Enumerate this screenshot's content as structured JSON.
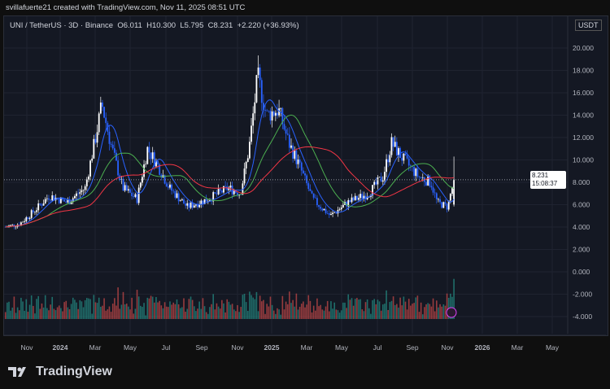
{
  "credit": "svillafuerte21 created with TradingView.com, Nov 11, 2025 08:51 UTC",
  "legend": {
    "symbol": "UNI / TetherUS · 3D · Binance",
    "open": "O6.011",
    "high": "H10.300",
    "low": "L5.795",
    "close": "C8.231",
    "change": "+2.220 (+36.93%)"
  },
  "currency": "USDT",
  "last_price": {
    "price": "8.231",
    "countdown": "15:08:37"
  },
  "logo": "TradingView",
  "colors": {
    "up": "#ffffff",
    "down": "#2962ff",
    "ma_fast": "#2962ff",
    "ma_mid": "#4caf50",
    "ma_slow": "#f23645",
    "vol_up": "#26a69a",
    "vol_down": "#ef5350",
    "bg": "#141823"
  },
  "chart_data": {
    "type": "candlestick",
    "y_ticks": [
      "20.000",
      "18.000",
      "16.000",
      "14.000",
      "12.000",
      "10.000",
      "8.000",
      "6.000",
      "4.000",
      "2.000",
      "0.000",
      "-2.000",
      "-4.000"
    ],
    "ylim": [
      -4,
      20
    ],
    "x_ticks": [
      "Nov",
      "2024",
      "Mar",
      "May",
      "Jul",
      "Sep",
      "Nov",
      "2025",
      "Mar",
      "May",
      "Jul",
      "Sep",
      "Nov",
      "2026",
      "Mar",
      "May"
    ],
    "approx_closes": [
      [
        "2023-09-25",
        4.0
      ],
      [
        "2023-10-20",
        4.3
      ],
      [
        "2023-11-15",
        5.5
      ],
      [
        "2023-12-10",
        6.8
      ],
      [
        "2024-01-10",
        6.2
      ],
      [
        "2024-02-10",
        7.5
      ],
      [
        "2024-03-01",
        12.5
      ],
      [
        "2024-03-10",
        15.0
      ],
      [
        "2024-03-25",
        11.5
      ],
      [
        "2024-04-15",
        7.5
      ],
      [
        "2024-05-10",
        6.5
      ],
      [
        "2024-05-28",
        11.0
      ],
      [
        "2024-06-15",
        9.5
      ],
      [
        "2024-07-05",
        7.5
      ],
      [
        "2024-08-05",
        5.8
      ],
      [
        "2024-09-10",
        6.5
      ],
      [
        "2024-10-15",
        7.5
      ],
      [
        "2024-11-05",
        7.0
      ],
      [
        "2024-11-20",
        11.0
      ],
      [
        "2024-12-05",
        17.5
      ],
      [
        "2024-12-20",
        14.0
      ],
      [
        "2025-01-10",
        14.5
      ],
      [
        "2025-01-28",
        11.5
      ],
      [
        "2025-02-15",
        9.5
      ],
      [
        "2025-03-10",
        6.5
      ],
      [
        "2025-04-10",
        5.0
      ],
      [
        "2025-05-10",
        6.2
      ],
      [
        "2025-06-15",
        7.0
      ],
      [
        "2025-07-10",
        8.5
      ],
      [
        "2025-07-25",
        11.5
      ],
      [
        "2025-08-15",
        10.0
      ],
      [
        "2025-09-10",
        8.5
      ],
      [
        "2025-10-01",
        8.0
      ],
      [
        "2025-10-12",
        6.2
      ],
      [
        "2025-10-30",
        5.8
      ],
      [
        "2025-11-10",
        8.231
      ]
    ]
  }
}
